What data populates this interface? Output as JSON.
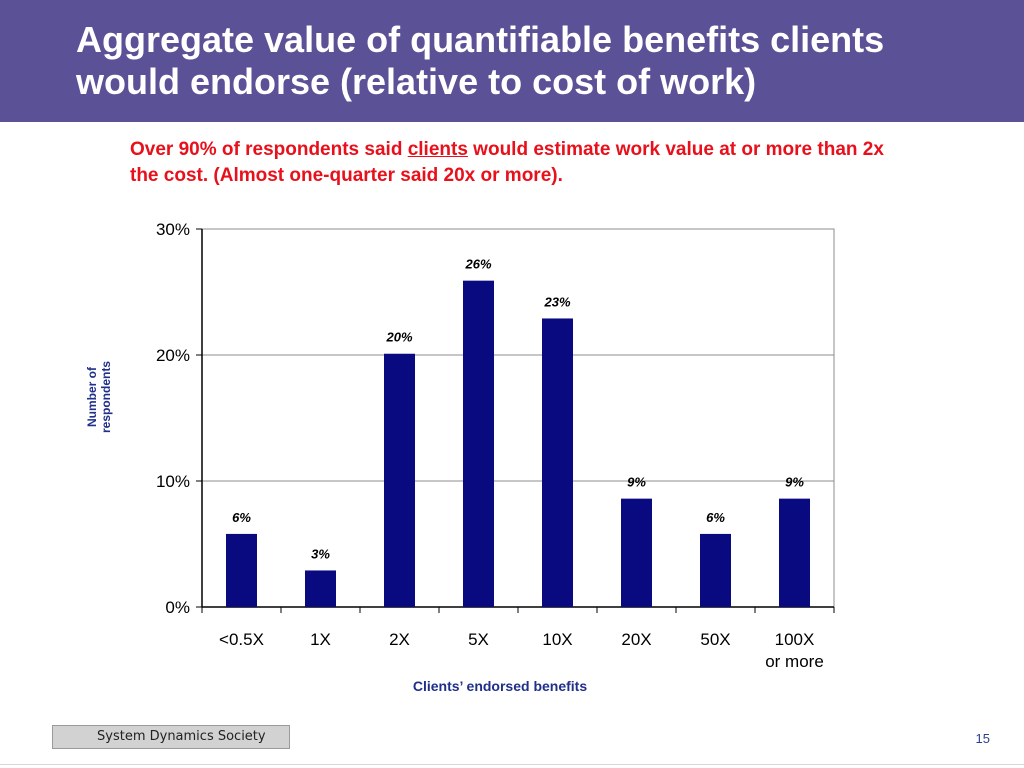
{
  "header": {
    "title": "Aggregate value of quantifiable benefits clients would endorse (relative to cost of work)"
  },
  "subtitle": {
    "before": "Over 90% of respondents said ",
    "underlined": "clients",
    "after": " would estimate work value at or more than 2x the cost. (Almost one-quarter said 20x or more)."
  },
  "chart_data": {
    "type": "bar",
    "categories": [
      "<0.5X",
      "1X",
      "2X",
      "5X",
      "10X",
      "20X",
      "50X",
      "100X\nor more"
    ],
    "values": [
      6,
      3,
      20,
      26,
      23,
      9,
      6,
      9
    ],
    "plotted_values": [
      5.8,
      2.9,
      20.1,
      25.9,
      22.9,
      8.6,
      5.8,
      8.6
    ],
    "data_labels": [
      "6%",
      "3%",
      "20%",
      "26%",
      "23%",
      "9%",
      "6%",
      "9%"
    ],
    "y_ticks": [
      "0%",
      "10%",
      "20%",
      "30%"
    ],
    "y_tick_values": [
      0,
      10,
      20,
      30
    ],
    "xlabel": "Clients’ endorsed benefits",
    "ylabel": "Number of respondents",
    "ylim": [
      0,
      30
    ],
    "grid": true,
    "bar_color": "#0a0a80",
    "axis_label_color": "#1f2f8a"
  },
  "footer": {
    "organization": "System Dynamics Society",
    "page_number": "15"
  },
  "colors": {
    "title_bar": "#5b5197",
    "subtitle": "#e8101a"
  }
}
